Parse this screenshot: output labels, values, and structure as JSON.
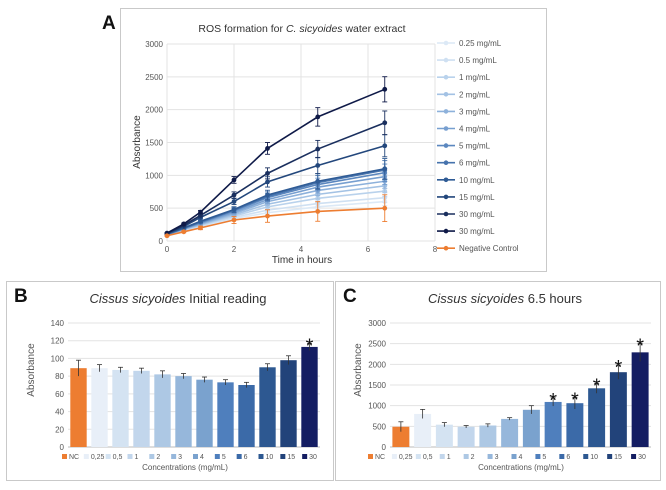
{
  "figure": {
    "panel_labels": [
      "A",
      "B",
      "C"
    ],
    "x_unit": "Time in hours"
  },
  "chart_data": [
    {
      "id": "A",
      "type": "line",
      "title_prefix": "ROS formation for ",
      "title_italic": "C. sicyoides",
      "title_suffix": " water extract",
      "xlabel": "Time in hours",
      "ylabel": "Absorbance",
      "xlim": [
        0,
        8
      ],
      "ylim": [
        0,
        3000
      ],
      "xticks": [
        0,
        2,
        4,
        6,
        8
      ],
      "yticks": [
        0,
        500,
        1000,
        1500,
        2000,
        2500,
        3000
      ],
      "grid": true,
      "legend_position": "right",
      "x": [
        0,
        0.5,
        1,
        2,
        3,
        4.5,
        6.5
      ],
      "series": [
        {
          "name": "0.25 mg/mL",
          "color": "#dce9f6",
          "values": [
            80,
            150,
            210,
            340,
            430,
            520,
            600
          ]
        },
        {
          "name": "0.5 mg/mL",
          "color": "#cfe0f2",
          "values": [
            85,
            160,
            225,
            360,
            470,
            570,
            660
          ]
        },
        {
          "name": "1 mg/mL",
          "color": "#b9d2ec",
          "values": [
            90,
            170,
            240,
            380,
            520,
            650,
            760
          ]
        },
        {
          "name": "2 mg/mL",
          "color": "#a3c2e4",
          "values": [
            90,
            175,
            250,
            400,
            560,
            710,
            840
          ]
        },
        {
          "name": "3 mg/mL",
          "color": "#8db1db",
          "values": [
            95,
            180,
            260,
            420,
            600,
            770,
            910
          ]
        },
        {
          "name": "4 mg/mL",
          "color": "#779fd0",
          "values": [
            95,
            185,
            270,
            440,
            630,
            820,
            980
          ]
        },
        {
          "name": "5 mg/mL",
          "color": "#5b87bf",
          "values": [
            100,
            190,
            280,
            460,
            660,
            860,
            1040
          ]
        },
        {
          "name": "6 mg/mL",
          "color": "#4673ad",
          "values": [
            100,
            195,
            290,
            470,
            680,
            890,
            1080
          ]
        },
        {
          "name": "10 mg/mL",
          "color": "#2f5b95",
          "values": [
            105,
            200,
            300,
            480,
            700,
            910,
            1100
          ]
        },
        {
          "name": "15 mg/mL",
          "color": "#23477c",
          "values": [
            110,
            220,
            360,
            600,
            900,
            1150,
            1450
          ]
        },
        {
          "name": "30 mg/mL",
          "color": "#1a2f5e",
          "values": [
            115,
            240,
            390,
            700,
            1030,
            1400,
            1800
          ]
        },
        {
          "name": "30 mg/mL",
          "color": "#0f1a48",
          "values": [
            120,
            260,
            440,
            930,
            1410,
            1890,
            2310
          ]
        },
        {
          "name": "Negative Control",
          "color": "#ed7d31",
          "values": [
            80,
            140,
            200,
            320,
            380,
            450,
            500
          ]
        }
      ],
      "error_bars": [
        5,
        10,
        20,
        40,
        70,
        110,
        150
      ]
    },
    {
      "id": "B",
      "type": "bar",
      "title_italic": "Cissus sicyoides",
      "title_suffix": " Initial reading",
      "xlabel": "Concentrations (mg/mL)",
      "ylabel": "Absorbance",
      "ylim": [
        0,
        140
      ],
      "yticks": [
        0,
        20,
        40,
        60,
        80,
        100,
        120,
        140
      ],
      "grid": true,
      "legend_position": "bottom",
      "categories": [
        "NC",
        "0,25",
        "0,5",
        "1",
        "2",
        "3",
        "4",
        "5",
        "6",
        "10",
        "15",
        "30"
      ],
      "colors": [
        "#ed7d31",
        "#e8eff8",
        "#d4e3f2",
        "#c2d6ec",
        "#adc8e4",
        "#96b7db",
        "#7aa2ce",
        "#4f7fbd",
        "#3b6aa8",
        "#2d5891",
        "#22437a",
        "#141d62"
      ],
      "values": [
        89,
        89,
        87,
        86,
        82,
        80,
        76,
        73,
        70,
        90,
        98,
        113
      ],
      "errors": [
        9,
        4,
        3,
        3,
        4,
        3,
        3,
        3,
        3,
        4,
        5,
        4
      ],
      "significance_marker": "*",
      "significant": [
        false,
        false,
        false,
        false,
        false,
        false,
        false,
        false,
        false,
        false,
        false,
        true
      ]
    },
    {
      "id": "C",
      "type": "bar",
      "title_italic": "Cissus sicyoides",
      "title_suffix": " 6.5 hours",
      "xlabel": "Concentrations (mg/mL)",
      "ylabel": "Absorbance",
      "ylim": [
        0,
        3000
      ],
      "yticks": [
        0,
        500,
        1000,
        1500,
        2000,
        2500,
        3000
      ],
      "grid": true,
      "legend_position": "bottom",
      "categories": [
        "NC",
        "0,25",
        "0,5",
        "1",
        "2",
        "3",
        "4",
        "5",
        "6",
        "10",
        "15",
        "30"
      ],
      "colors": [
        "#ed7d31",
        "#e8eff8",
        "#d4e3f2",
        "#c2d6ec",
        "#adc8e4",
        "#96b7db",
        "#7aa2ce",
        "#4f7fbd",
        "#3b6aa8",
        "#2d5891",
        "#22437a",
        "#141d62"
      ],
      "values": [
        490,
        800,
        540,
        490,
        520,
        680,
        900,
        1090,
        1060,
        1420,
        1810,
        2290
      ],
      "errors": [
        120,
        110,
        50,
        30,
        40,
        30,
        100,
        100,
        140,
        120,
        170,
        220
      ],
      "significance_marker": "*",
      "significant": [
        false,
        false,
        false,
        false,
        false,
        false,
        false,
        true,
        true,
        true,
        true,
        true
      ]
    }
  ]
}
